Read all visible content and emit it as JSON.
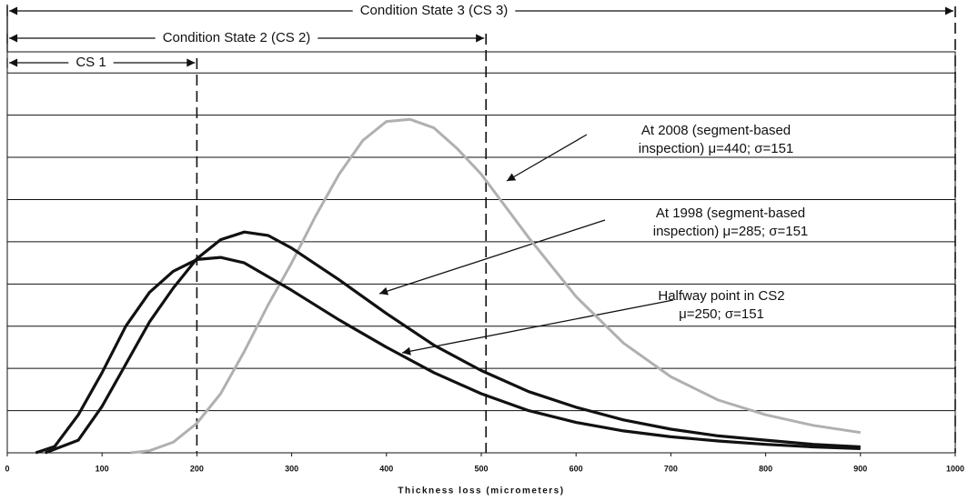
{
  "chart_data": {
    "type": "line",
    "x_label": "Thickness loss (micrometers)",
    "xlim": [
      0,
      1000
    ],
    "xticks": [
      0,
      100,
      200,
      300,
      400,
      500,
      600,
      700,
      800,
      900,
      1000
    ],
    "ylim": [
      0,
      9.5
    ],
    "yticks": [
      0,
      1,
      2,
      3,
      4,
      5,
      6,
      7,
      8,
      9
    ],
    "grid": true,
    "ranges": [
      {
        "label": "Condition State 3 (CS 3)",
        "start": 0,
        "end": 1000
      },
      {
        "label": "Condition State 2 (CS 2)",
        "start": 0,
        "end": 505
      },
      {
        "label": "CS 1",
        "start": 0,
        "end": 200
      }
    ],
    "series": [
      {
        "name": "At 2008",
        "color": "#b0b0b0",
        "x": [
          130,
          150,
          175,
          200,
          225,
          250,
          275,
          300,
          325,
          350,
          375,
          400,
          425,
          450,
          475,
          500,
          550,
          600,
          650,
          700,
          750,
          800,
          850,
          900
        ],
        "values": [
          0,
          0.05,
          0.25,
          0.7,
          1.4,
          2.4,
          3.5,
          4.5,
          5.6,
          6.6,
          7.4,
          7.85,
          7.9,
          7.7,
          7.2,
          6.6,
          5.1,
          3.7,
          2.6,
          1.8,
          1.25,
          0.9,
          0.65,
          0.48
        ]
      },
      {
        "name": "At 1998",
        "color": "#111111",
        "x": [
          40,
          75,
          100,
          125,
          150,
          175,
          200,
          225,
          250,
          275,
          300,
          350,
          400,
          450,
          500,
          550,
          600,
          650,
          700,
          750,
          800,
          850,
          900
        ],
        "values": [
          0,
          0.3,
          1.1,
          2.1,
          3.1,
          3.9,
          4.6,
          5.05,
          5.23,
          5.15,
          4.85,
          4.1,
          3.3,
          2.55,
          1.95,
          1.45,
          1.08,
          0.78,
          0.56,
          0.4,
          0.3,
          0.2,
          0.14
        ]
      },
      {
        "name": "Halfway point in CS2",
        "color": "#111111",
        "x": [
          30,
          50,
          75,
          100,
          125,
          150,
          175,
          200,
          225,
          250,
          300,
          350,
          400,
          450,
          500,
          550,
          600,
          650,
          700,
          750,
          800,
          850,
          900
        ],
        "values": [
          0,
          0.15,
          0.9,
          1.9,
          3.0,
          3.8,
          4.3,
          4.58,
          4.63,
          4.5,
          3.85,
          3.15,
          2.5,
          1.9,
          1.4,
          1.0,
          0.72,
          0.52,
          0.38,
          0.28,
          0.2,
          0.14,
          0.1
        ]
      }
    ],
    "annotations": [
      {
        "lines": [
          "At 2008 (segment-based",
          "inspection) μ=440; σ=151"
        ]
      },
      {
        "lines": [
          "At 1998 (segment-based",
          "inspection) μ=285; σ=151"
        ]
      },
      {
        "lines": [
          "Halfway point in CS2",
          "μ=250; σ=151"
        ]
      }
    ]
  }
}
